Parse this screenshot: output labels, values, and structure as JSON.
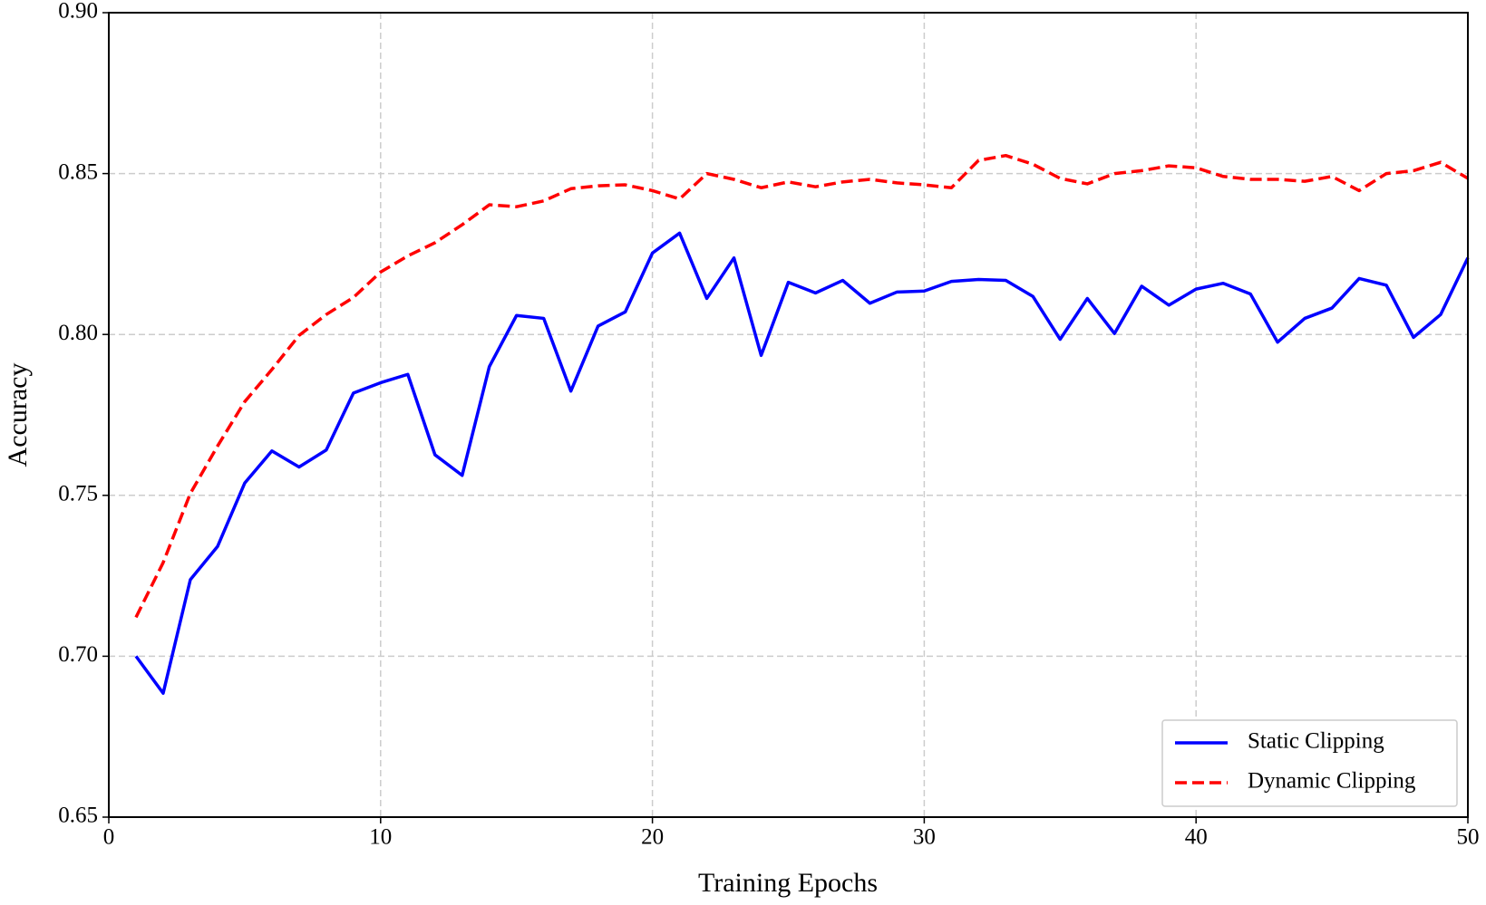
{
  "chart_data": {
    "type": "line",
    "x_label": "Training Epochs",
    "y_label": "Accuracy",
    "x": [
      1,
      2,
      3,
      4,
      5,
      6,
      7,
      8,
      9,
      10,
      11,
      12,
      13,
      14,
      15,
      16,
      17,
      18,
      19,
      20,
      21,
      22,
      23,
      24,
      25,
      26,
      27,
      28,
      29,
      30,
      31,
      32,
      33,
      34,
      35,
      36,
      37,
      38,
      39,
      40,
      41,
      42,
      43,
      44,
      45,
      46,
      47,
      48,
      49,
      50
    ],
    "series": [
      {
        "name": "Static Clipping",
        "color": "#0000ff",
        "dash": "solid",
        "values": [
          0.7,
          0.6885,
          0.7238,
          0.7341,
          0.7538,
          0.7638,
          0.7588,
          0.7641,
          0.7818,
          0.785,
          0.7876,
          0.7626,
          0.7562,
          0.79,
          0.8059,
          0.805,
          0.7824,
          0.8026,
          0.807,
          0.8253,
          0.8315,
          0.8112,
          0.8238,
          0.7935,
          0.8162,
          0.8129,
          0.8168,
          0.8097,
          0.8132,
          0.8135,
          0.8165,
          0.8171,
          0.8168,
          0.8118,
          0.7985,
          0.8112,
          0.8003,
          0.815,
          0.8091,
          0.8141,
          0.8159,
          0.8126,
          0.7976,
          0.805,
          0.8082,
          0.8174,
          0.8153,
          0.7991,
          0.8062,
          0.8238
        ]
      },
      {
        "name": "Dynamic Clipping",
        "color": "#ff0000",
        "dash": "dashed",
        "values": [
          0.7121,
          0.7291,
          0.7506,
          0.7653,
          0.7791,
          0.7891,
          0.7997,
          0.8062,
          0.8115,
          0.8194,
          0.8244,
          0.8285,
          0.8341,
          0.8403,
          0.8397,
          0.8415,
          0.8453,
          0.8462,
          0.8465,
          0.8447,
          0.8421,
          0.85,
          0.8482,
          0.8456,
          0.8474,
          0.8459,
          0.8474,
          0.8482,
          0.8471,
          0.8465,
          0.8456,
          0.8541,
          0.8556,
          0.8529,
          0.8485,
          0.8468,
          0.85,
          0.8509,
          0.8524,
          0.8518,
          0.8491,
          0.8482,
          0.8482,
          0.8476,
          0.8491,
          0.8447,
          0.85,
          0.8509,
          0.8535,
          0.8485
        ]
      }
    ],
    "xlim": [
      0,
      50
    ],
    "xticks": [
      0,
      10,
      20,
      30,
      40,
      50
    ],
    "ylim": [
      0.65,
      0.9
    ],
    "yticks": [
      0.65,
      {
        "value": 0.7,
        "label": "0.70"
      },
      0.75,
      {
        "value": 0.8,
        "label": "0.80"
      },
      0.85,
      {
        "value": 0.9,
        "label": "0.90"
      }
    ],
    "grid": true,
    "legend": "lower right"
  }
}
